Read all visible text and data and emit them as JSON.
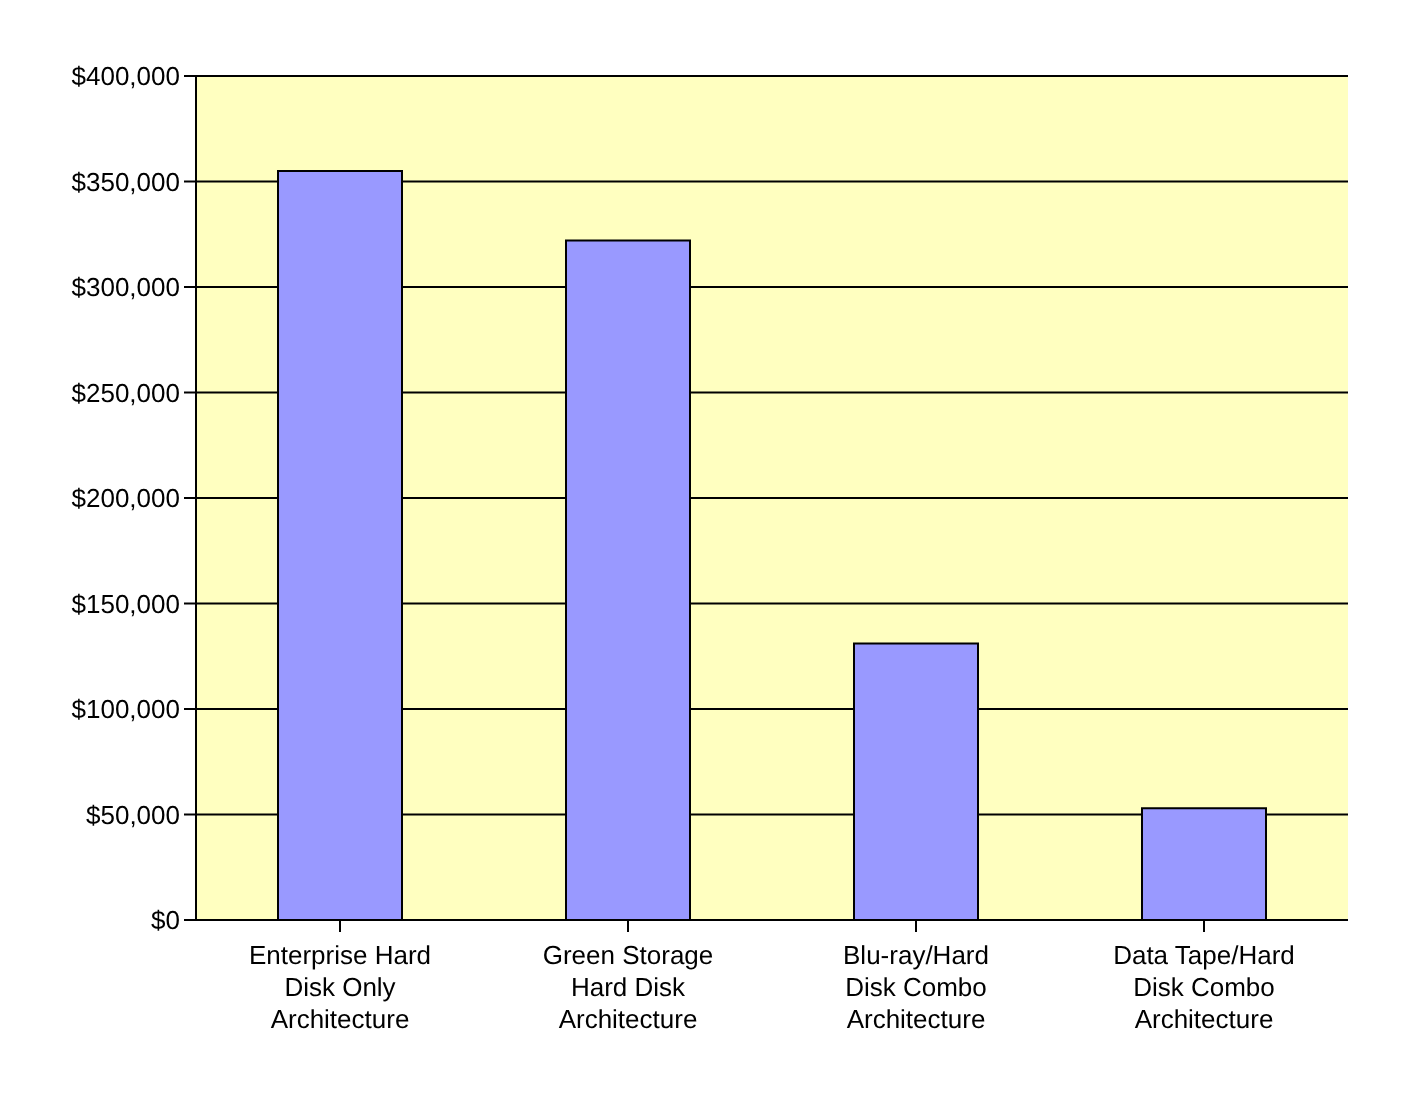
{
  "chart_data": {
    "type": "bar",
    "categories": [
      "Enterprise Hard Disk Only Architecture",
      "Green Storage Hard Disk Architecture",
      "Blu-ray/Hard Disk Combo Architecture",
      "Data Tape/Hard Disk Combo Architecture"
    ],
    "values": [
      355000,
      322000,
      131000,
      53000
    ],
    "color": "#9999ff",
    "ylim": [
      0,
      400000
    ],
    "yticks": [
      {
        "value": 0,
        "label": "$0"
      },
      {
        "value": 50000,
        "label": "$50,000"
      },
      {
        "value": 100000,
        "label": "$100,000"
      },
      {
        "value": 150000,
        "label": "$150,000"
      },
      {
        "value": 200000,
        "label": "$200,000"
      },
      {
        "value": 250000,
        "label": "$250,000"
      },
      {
        "value": 300000,
        "label": "$300,000"
      },
      {
        "value": 350000,
        "label": "$350,000"
      },
      {
        "value": 400000,
        "label": "$400,000"
      }
    ],
    "grid": "y"
  }
}
